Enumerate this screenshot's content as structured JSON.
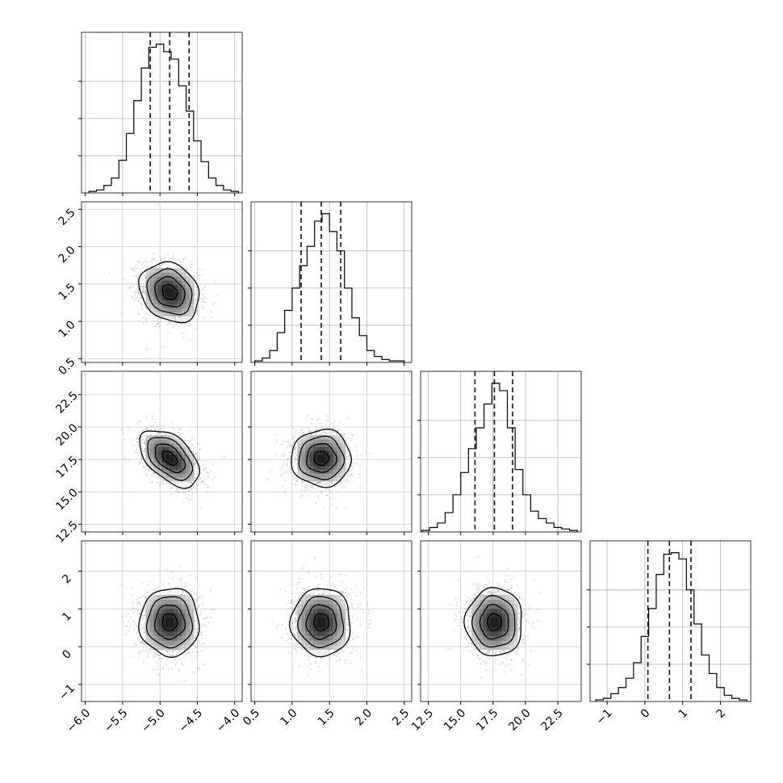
{
  "chart_data": {
    "type": "corner",
    "params": [
      "p0",
      "p1",
      "p2",
      "p3"
    ],
    "grid": true,
    "quantile_lines": "dashed",
    "ticks": {
      "p0": {
        "values": [
          -6.0,
          -5.5,
          -5.0,
          -4.5,
          -4.0
        ],
        "labels": [
          "−6.0",
          "−5.5",
          "−5.0",
          "−4.5",
          "−4.0"
        ]
      },
      "p1": {
        "values": [
          0.5,
          1.0,
          1.5,
          2.0,
          2.5
        ],
        "labels": [
          "0.5",
          "1.0",
          "1.5",
          "2.0",
          "2.5"
        ]
      },
      "p2": {
        "values": [
          12.5,
          15.0,
          17.5,
          20.0,
          22.5
        ],
        "labels": [
          "12.5",
          "15.0",
          "17.5",
          "20.0",
          "22.5"
        ]
      },
      "p3": {
        "values": [
          -1,
          0,
          1,
          2
        ],
        "labels": [
          "−1",
          "0",
          "1",
          "2"
        ]
      }
    },
    "ranges": {
      "p0": [
        -6.05,
        -3.9
      ],
      "p1": [
        0.45,
        2.6
      ],
      "p2": [
        11.9,
        24.3
      ],
      "p3": [
        -1.45,
        2.8
      ]
    },
    "histograms": [
      {
        "param": "p0",
        "quantiles": [
          -5.13,
          -4.87,
          -4.61
        ],
        "median": -4.87,
        "bin_edges": [
          -5.95,
          -5.85,
          -5.75,
          -5.65,
          -5.55,
          -5.45,
          -5.35,
          -5.25,
          -5.15,
          -5.05,
          -4.95,
          -4.85,
          -4.75,
          -4.65,
          -4.55,
          -4.45,
          -4.35,
          -4.25,
          -4.15,
          -4.05,
          -3.95
        ],
        "counts": [
          1,
          2,
          5,
          10,
          22,
          40,
          62,
          84,
          98,
          100,
          95,
          90,
          72,
          55,
          35,
          21,
          10,
          5,
          2,
          1
        ]
      },
      {
        "param": "p1",
        "quantiles": [
          1.12,
          1.39,
          1.65
        ],
        "median": 1.39,
        "bin_edges": [
          0.5,
          0.6,
          0.7,
          0.8,
          0.9,
          1.0,
          1.1,
          1.2,
          1.3,
          1.4,
          1.5,
          1.6,
          1.7,
          1.8,
          1.9,
          2.0,
          2.1,
          2.2,
          2.3,
          2.4,
          2.5
        ],
        "counts": [
          1,
          3,
          8,
          20,
          35,
          50,
          65,
          78,
          95,
          100,
          88,
          75,
          50,
          30,
          18,
          8,
          4,
          2,
          1,
          1
        ]
      },
      {
        "param": "p2",
        "quantiles": [
          16.1,
          17.6,
          19.0
        ],
        "median": 17.6,
        "bin_edges": [
          12.0,
          12.6,
          13.2,
          13.8,
          14.4,
          15.0,
          15.6,
          16.2,
          16.8,
          17.4,
          18.0,
          18.6,
          19.2,
          19.8,
          20.4,
          21.0,
          21.6,
          22.2,
          22.8,
          23.4,
          24.0
        ],
        "counts": [
          1,
          3,
          6,
          13,
          25,
          40,
          56,
          70,
          86,
          100,
          95,
          70,
          42,
          25,
          14,
          9,
          6,
          3,
          2,
          1
        ]
      },
      {
        "param": "p3",
        "quantiles": [
          0.08,
          0.65,
          1.22
        ],
        "median": 0.65,
        "bin_edges": [
          -1.3,
          -1.1,
          -0.9,
          -0.7,
          -0.5,
          -0.3,
          -0.1,
          0.1,
          0.3,
          0.5,
          0.7,
          0.9,
          1.1,
          1.3,
          1.5,
          1.7,
          1.9,
          2.1,
          2.3,
          2.5,
          2.7
        ],
        "counts": [
          1,
          2,
          5,
          9,
          15,
          25,
          42,
          60,
          82,
          95,
          96,
          92,
          72,
          50,
          30,
          18,
          9,
          4,
          2,
          1
        ]
      }
    ],
    "scatter_panels": [
      {
        "x": "p0",
        "y": "p1",
        "mean": [
          -4.87,
          1.39
        ],
        "sigma": [
          0.2,
          0.2
        ],
        "corr": -0.2
      },
      {
        "x": "p0",
        "y": "p2",
        "mean": [
          -4.87,
          17.6
        ],
        "sigma": [
          0.2,
          1.1
        ],
        "corr": -0.5
      },
      {
        "x": "p1",
        "y": "p2",
        "mean": [
          1.39,
          17.6
        ],
        "sigma": [
          0.2,
          1.1
        ],
        "corr": 0.0
      },
      {
        "x": "p0",
        "y": "p3",
        "mean": [
          -4.87,
          0.65
        ],
        "sigma": [
          0.2,
          0.45
        ],
        "corr": 0.0
      },
      {
        "x": "p1",
        "y": "p3",
        "mean": [
          1.39,
          0.65
        ],
        "sigma": [
          0.2,
          0.45
        ],
        "corr": 0.0
      },
      {
        "x": "p2",
        "y": "p3",
        "mean": [
          17.6,
          0.65
        ],
        "sigma": [
          1.1,
          0.45
        ],
        "corr": 0.0
      }
    ]
  }
}
